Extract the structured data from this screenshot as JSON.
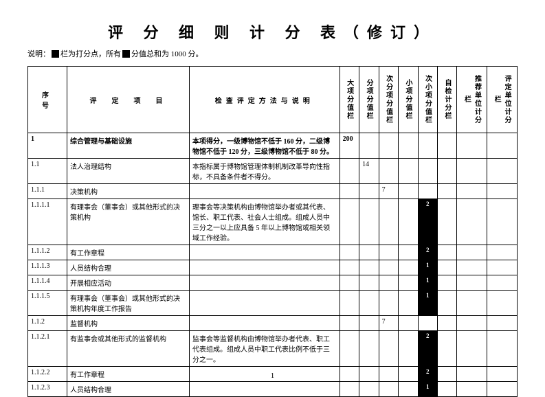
{
  "title": "评 分 细 则 计 分 表（修订）",
  "subtitle_prefix": "说明：",
  "subtitle_mid1": " 栏为打分点，所有 ",
  "subtitle_mid2": " 分值总和为 1000 分。",
  "headers": {
    "seq": "序　号",
    "item": "评　定　项　目",
    "desc": "检查评定方法与说明",
    "c1": "大项分值栏",
    "c2": "分项分值栏",
    "c3": "次分项分值栏",
    "c4": "小项分值栏",
    "c5": "次小项分值栏",
    "c6": "自检计分栏",
    "c7": "推荐单位计分栏",
    "c8": "评定单位计分栏"
  },
  "rows": [
    {
      "seq": "1",
      "item": "综合管理与基础设施",
      "desc": "本项得分，一级博物馆不低于 160 分，二级博物馆不低于 120 分，三级博物馆不低于 80 分。",
      "v": [
        "200",
        "",
        "",
        "",
        "",
        "",
        "",
        ""
      ],
      "bold": true
    },
    {
      "seq": "1.1",
      "item": "法人治理结构",
      "desc": "本指标属于博物馆管理体制机制改革导向性指标，不具备条件者不得分。",
      "v": [
        "",
        "14",
        "",
        "",
        "",
        "",
        "",
        ""
      ]
    },
    {
      "seq": "1.1.1",
      "item": "决策机构",
      "desc": "",
      "v": [
        "",
        "",
        "7",
        "",
        "",
        "",
        "",
        ""
      ]
    },
    {
      "seq": "1.1.1.1",
      "item": "有理事会（董事会）或其他形式的决策机构",
      "desc": "理事会等决策机构由博物馆举办者或其代表、馆长、职工代表、社会人士组成。组成人员中三分之一以上应具备 5 年以上博物馆或相关领域工作经验。",
      "v": [
        "",
        "",
        "",
        "",
        "2b",
        "",
        "",
        ""
      ]
    },
    {
      "seq": "1.1.1.2",
      "item": "有工作章程",
      "desc": "",
      "v": [
        "",
        "",
        "",
        "",
        "2b",
        "",
        "",
        ""
      ]
    },
    {
      "seq": "1.1.1.3",
      "item": "人员结构合理",
      "desc": "",
      "v": [
        "",
        "",
        "",
        "",
        "1b",
        "",
        "",
        ""
      ]
    },
    {
      "seq": "1.1.1.4",
      "item": "开展相应活动",
      "desc": "",
      "v": [
        "",
        "",
        "",
        "",
        "1b",
        "",
        "",
        ""
      ]
    },
    {
      "seq": "1.1.1.5",
      "item": "有理事会（董事会）或其他形式的决策机构年度工作报告",
      "desc": "",
      "v": [
        "",
        "",
        "",
        "",
        "1b",
        "",
        "",
        ""
      ]
    },
    {
      "seq": "1.1.2",
      "item": "监督机构",
      "desc": "",
      "v": [
        "",
        "",
        "7",
        "",
        "",
        "",
        "",
        ""
      ]
    },
    {
      "seq": "1.1.2.1",
      "item": "有监事会或其他形式的监督机构",
      "desc": "监事会等监督机构由博物馆举办者代表、职工代表组成。组成人员中职工代表比例不低于三分之一。",
      "v": [
        "",
        "",
        "",
        "",
        "2b",
        "",
        "",
        ""
      ]
    },
    {
      "seq": "1.1.2.2",
      "item": "有工作章程",
      "desc": "",
      "v": [
        "",
        "",
        "",
        "",
        "2b",
        "",
        "",
        ""
      ]
    },
    {
      "seq": "1.1.2.3",
      "item": "人员结构合理",
      "desc": "",
      "v": [
        "",
        "",
        "",
        "",
        "1b",
        "",
        "",
        ""
      ]
    }
  ],
  "page_number": "1"
}
